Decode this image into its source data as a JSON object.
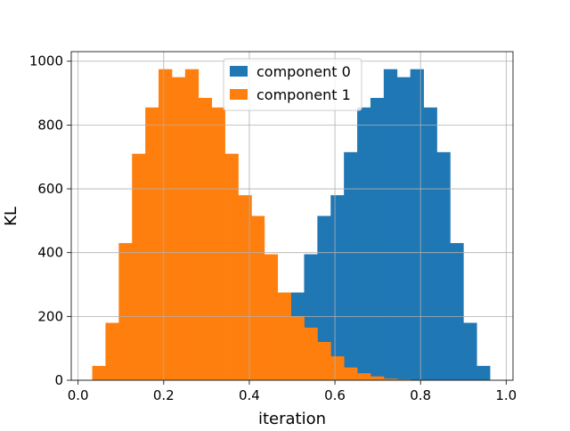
{
  "chart_data": {
    "type": "bar",
    "title": "",
    "xlabel": "iteration",
    "ylabel": "KL",
    "xlim": [
      -0.016,
      1.016
    ],
    "ylim": [
      0,
      1030
    ],
    "xticks": [
      0.0,
      0.2,
      0.4,
      0.6,
      0.8,
      1.0
    ],
    "xtick_labels": [
      "0.0",
      "0.2",
      "0.4",
      "0.6",
      "0.8",
      "1.0"
    ],
    "yticks": [
      0,
      200,
      400,
      600,
      800,
      1000
    ],
    "ytick_labels": [
      "0",
      "200",
      "400",
      "600",
      "800",
      "1000"
    ],
    "grid": true,
    "legend_position": "top-center",
    "series": [
      {
        "name": "component 0",
        "color": "#1f77b4",
        "bins": [
          {
            "x0": 0.405,
            "x1": 0.435,
            "value": 3
          },
          {
            "x0": 0.435,
            "x1": 0.466,
            "value": 5
          },
          {
            "x0": 0.466,
            "x1": 0.497,
            "value": 8
          },
          {
            "x0": 0.497,
            "x1": 0.528,
            "value": 275
          },
          {
            "x0": 0.528,
            "x1": 0.559,
            "value": 395
          },
          {
            "x0": 0.559,
            "x1": 0.59,
            "value": 515
          },
          {
            "x0": 0.59,
            "x1": 0.621,
            "value": 580
          },
          {
            "x0": 0.621,
            "x1": 0.652,
            "value": 715
          },
          {
            "x0": 0.652,
            "x1": 0.683,
            "value": 855
          },
          {
            "x0": 0.683,
            "x1": 0.714,
            "value": 885
          },
          {
            "x0": 0.714,
            "x1": 0.745,
            "value": 975
          },
          {
            "x0": 0.745,
            "x1": 0.776,
            "value": 950
          },
          {
            "x0": 0.776,
            "x1": 0.807,
            "value": 975
          },
          {
            "x0": 0.807,
            "x1": 0.838,
            "value": 855
          },
          {
            "x0": 0.838,
            "x1": 0.869,
            "value": 715
          },
          {
            "x0": 0.869,
            "x1": 0.9,
            "value": 430
          },
          {
            "x0": 0.9,
            "x1": 0.931,
            "value": 180
          },
          {
            "x0": 0.931,
            "x1": 0.962,
            "value": 45
          }
        ]
      },
      {
        "name": "component 1",
        "color": "#ff7f0e",
        "bins": [
          {
            "x0": 0.033,
            "x1": 0.064,
            "value": 45
          },
          {
            "x0": 0.064,
            "x1": 0.095,
            "value": 180
          },
          {
            "x0": 0.095,
            "x1": 0.126,
            "value": 430
          },
          {
            "x0": 0.126,
            "x1": 0.157,
            "value": 710
          },
          {
            "x0": 0.157,
            "x1": 0.188,
            "value": 855
          },
          {
            "x0": 0.188,
            "x1": 0.219,
            "value": 975
          },
          {
            "x0": 0.219,
            "x1": 0.25,
            "value": 950
          },
          {
            "x0": 0.25,
            "x1": 0.281,
            "value": 975
          },
          {
            "x0": 0.281,
            "x1": 0.312,
            "value": 885
          },
          {
            "x0": 0.312,
            "x1": 0.343,
            "value": 855
          },
          {
            "x0": 0.343,
            "x1": 0.374,
            "value": 710
          },
          {
            "x0": 0.374,
            "x1": 0.405,
            "value": 580
          },
          {
            "x0": 0.405,
            "x1": 0.435,
            "value": 515
          },
          {
            "x0": 0.435,
            "x1": 0.466,
            "value": 395
          },
          {
            "x0": 0.466,
            "x1": 0.497,
            "value": 275
          },
          {
            "x0": 0.497,
            "x1": 0.528,
            "value": 200
          },
          {
            "x0": 0.528,
            "x1": 0.559,
            "value": 165
          },
          {
            "x0": 0.559,
            "x1": 0.59,
            "value": 120
          },
          {
            "x0": 0.59,
            "x1": 0.621,
            "value": 75
          },
          {
            "x0": 0.621,
            "x1": 0.652,
            "value": 40
          },
          {
            "x0": 0.652,
            "x1": 0.683,
            "value": 22
          },
          {
            "x0": 0.683,
            "x1": 0.714,
            "value": 12
          },
          {
            "x0": 0.714,
            "x1": 0.745,
            "value": 5
          },
          {
            "x0": 0.745,
            "x1": 0.776,
            "value": 3
          }
        ]
      }
    ]
  }
}
